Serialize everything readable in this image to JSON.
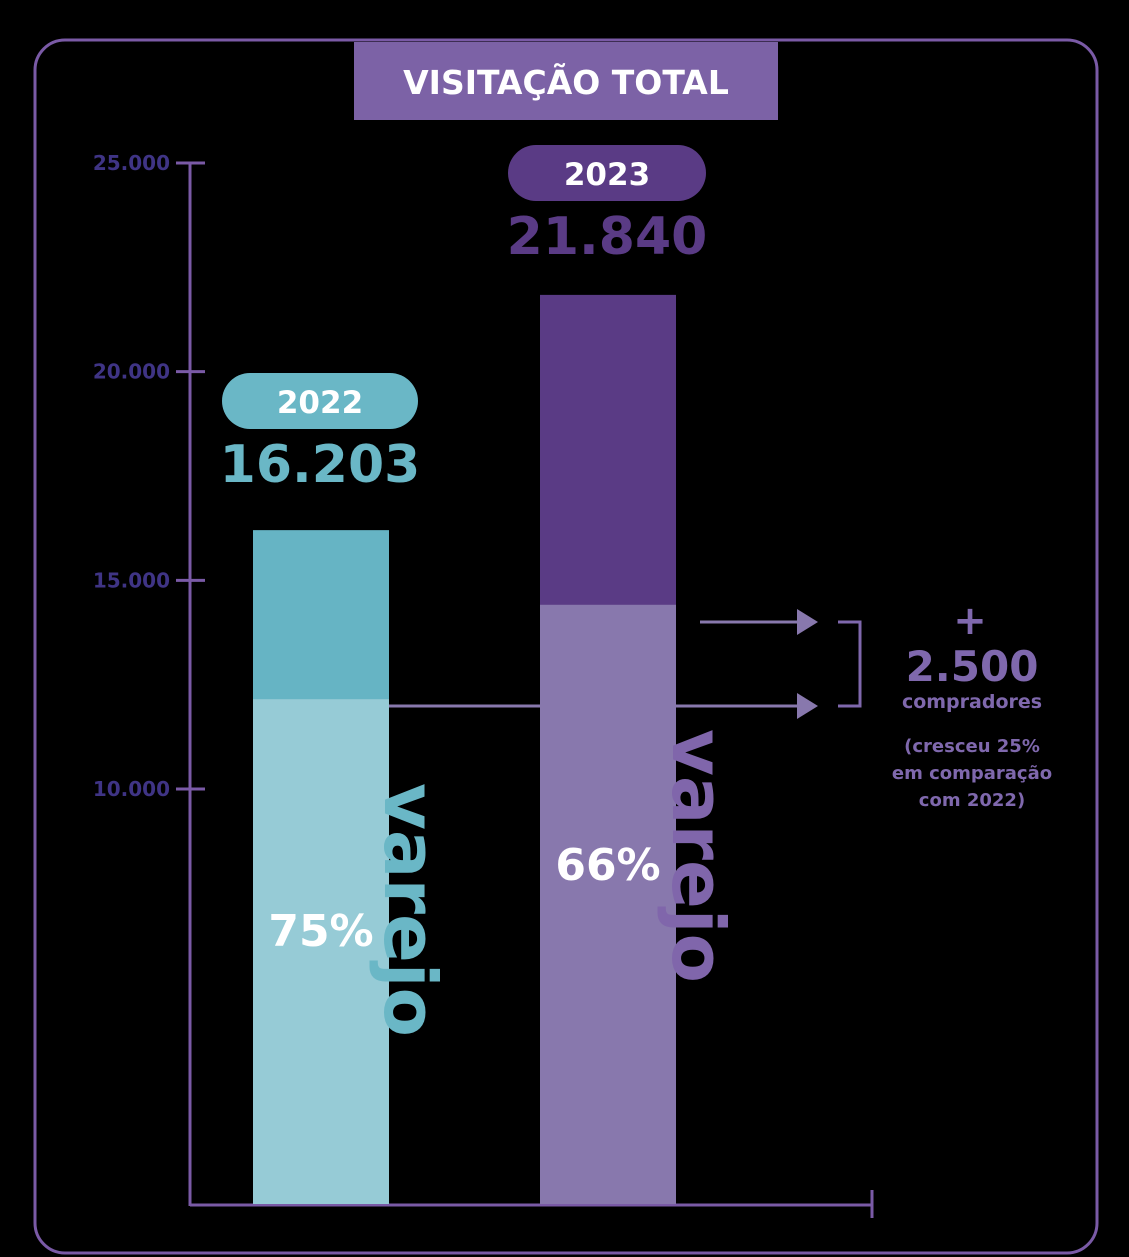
{
  "chart_data": {
    "type": "bar",
    "title": "VISITAÇÃO TOTAL",
    "ylim": [
      0,
      25000
    ],
    "ytick_values": [
      10000,
      15000,
      20000,
      25000
    ],
    "yticks": [
      "10.000",
      "15.000",
      "20.000",
      "25.000"
    ],
    "grid": false,
    "categories": [
      "2022",
      "2023"
    ],
    "values": [
      16203,
      21840
    ],
    "value_labels": [
      "16.203",
      "21.840"
    ],
    "retail_values": [
      12152,
      14414
    ],
    "retail_share_labels": [
      "75%",
      "66%"
    ],
    "segment_label": "varejo",
    "colors": {
      "bar_2022_total": "#66b4c4",
      "bar_2022_retail": "#96cbd6",
      "bar_2023_total": "#5a3b85",
      "bar_2023_retail": "#8878ad",
      "axis": "#7a5aa6",
      "tick_label": "#3f3485",
      "title_bg": "#7c62a6",
      "pill_2022": "#6ab7c6",
      "pill_2023": "#5a3b85",
      "annotation": "#7f68ad"
    },
    "annotation": {
      "plus": "+",
      "value": "2.500",
      "unit": "compradores",
      "note_lines": [
        "(cresceu 25%",
        "em comparação",
        "com 2022)"
      ]
    }
  }
}
